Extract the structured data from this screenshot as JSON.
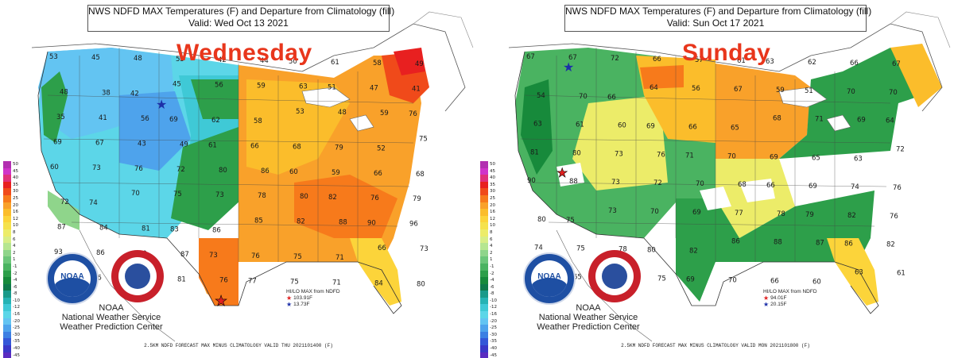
{
  "panels": [
    {
      "title_line1": "NWS NDFD MAX Temperatures (F) and Departure from Climatology (fill)",
      "title_line2": "Valid: Wed Oct 13 2021",
      "day_label": "Wednesday",
      "hilo_title": "HI/LO MAX from NDFD",
      "hi_value": "103.91F",
      "lo_value": "13.73F",
      "footer": "2.5KM NDFD FORECAST MAX MINUS CLIMATOLOGY VALID THU 2021101400 (F)",
      "temps": [
        {
          "t": "53"
        },
        {
          "t": "45"
        },
        {
          "t": "48"
        },
        {
          "t": "55"
        },
        {
          "t": "42"
        },
        {
          "t": "44"
        },
        {
          "t": "50"
        },
        {
          "t": "61"
        },
        {
          "t": "58"
        },
        {
          "t": "49"
        },
        {
          "t": "48"
        },
        {
          "t": "38"
        },
        {
          "t": "42"
        },
        {
          "t": "45"
        },
        {
          "t": "56"
        },
        {
          "t": "59"
        },
        {
          "t": "63"
        },
        {
          "t": "51"
        },
        {
          "t": "47"
        },
        {
          "t": "41"
        },
        {
          "t": "35"
        },
        {
          "t": "41"
        },
        {
          "t": "56"
        },
        {
          "t": "69"
        },
        {
          "t": "62"
        },
        {
          "t": "58"
        },
        {
          "t": "53"
        },
        {
          "t": "48"
        },
        {
          "t": "59"
        },
        {
          "t": "76"
        },
        {
          "t": "69"
        },
        {
          "t": "67"
        },
        {
          "t": "43"
        },
        {
          "t": "49"
        },
        {
          "t": "61"
        },
        {
          "t": "66"
        },
        {
          "t": "68"
        },
        {
          "t": "79"
        },
        {
          "t": "52"
        },
        {
          "t": "75"
        },
        {
          "t": "60"
        },
        {
          "t": "73"
        },
        {
          "t": "76"
        },
        {
          "t": "72"
        },
        {
          "t": "80"
        },
        {
          "t": "86"
        },
        {
          "t": "60"
        },
        {
          "t": "59"
        },
        {
          "t": "66"
        },
        {
          "t": "68"
        },
        {
          "t": "72"
        },
        {
          "t": "74"
        },
        {
          "t": "70"
        },
        {
          "t": "75"
        },
        {
          "t": "73"
        },
        {
          "t": "78"
        },
        {
          "t": "80"
        },
        {
          "t": "82"
        },
        {
          "t": "76"
        },
        {
          "t": "79"
        },
        {
          "t": "87"
        },
        {
          "t": "84"
        },
        {
          "t": "81"
        },
        {
          "t": "83"
        },
        {
          "t": "86"
        },
        {
          "t": "85"
        },
        {
          "t": "82"
        },
        {
          "t": "88"
        },
        {
          "t": "90"
        },
        {
          "t": "96"
        },
        {
          "t": "93"
        },
        {
          "t": "86"
        },
        {
          "t": "90"
        },
        {
          "t": "87"
        },
        {
          "t": "73"
        },
        {
          "t": "76"
        },
        {
          "t": "75"
        },
        {
          "t": "71"
        },
        {
          "t": "66"
        },
        {
          "t": "73"
        },
        {
          "t": "74"
        },
        {
          "t": "76"
        },
        {
          "t": "80"
        },
        {
          "t": "81"
        },
        {
          "t": "76"
        },
        {
          "t": "77"
        },
        {
          "t": "75"
        },
        {
          "t": "71"
        },
        {
          "t": "84"
        },
        {
          "t": "80"
        }
      ]
    },
    {
      "title_line1": "NWS NDFD MAX Temperatures (F) and Departure from Climatology (fill)",
      "title_line2": "Valid: Sun Oct 17 2021",
      "day_label": "Sunday",
      "hilo_title": "HI/LO MAX from NDFD",
      "hi_value": "94.01F",
      "lo_value": "20.15F",
      "footer": "2.5KM NDFD FORECAST MAX MINUS CLIMATOLOGY VALID MON 2021101800 (F)",
      "temps": [
        {
          "t": "67"
        },
        {
          "t": "67"
        },
        {
          "t": "72"
        },
        {
          "t": "66"
        },
        {
          "t": "57"
        },
        {
          "t": "61"
        },
        {
          "t": "63"
        },
        {
          "t": "62"
        },
        {
          "t": "66"
        },
        {
          "t": "67"
        },
        {
          "t": "54"
        },
        {
          "t": "70"
        },
        {
          "t": "66"
        },
        {
          "t": "64"
        },
        {
          "t": "56"
        },
        {
          "t": "67"
        },
        {
          "t": "59"
        },
        {
          "t": "51"
        },
        {
          "t": "70"
        },
        {
          "t": "70"
        },
        {
          "t": "63"
        },
        {
          "t": "61"
        },
        {
          "t": "60"
        },
        {
          "t": "69"
        },
        {
          "t": "66"
        },
        {
          "t": "65"
        },
        {
          "t": "68"
        },
        {
          "t": "71"
        },
        {
          "t": "69"
        },
        {
          "t": "64"
        },
        {
          "t": "81"
        },
        {
          "t": "80"
        },
        {
          "t": "73"
        },
        {
          "t": "76"
        },
        {
          "t": "71"
        },
        {
          "t": "70"
        },
        {
          "t": "69"
        },
        {
          "t": "65"
        },
        {
          "t": "63"
        },
        {
          "t": "72"
        },
        {
          "t": "90"
        },
        {
          "t": "88"
        },
        {
          "t": "73"
        },
        {
          "t": "72"
        },
        {
          "t": "70"
        },
        {
          "t": "68"
        },
        {
          "t": "66"
        },
        {
          "t": "69"
        },
        {
          "t": "74"
        },
        {
          "t": "76"
        },
        {
          "t": "80"
        },
        {
          "t": "75"
        },
        {
          "t": "73"
        },
        {
          "t": "70"
        },
        {
          "t": "69"
        },
        {
          "t": "77"
        },
        {
          "t": "78"
        },
        {
          "t": "79"
        },
        {
          "t": "82"
        },
        {
          "t": "76"
        },
        {
          "t": "74"
        },
        {
          "t": "75"
        },
        {
          "t": "78"
        },
        {
          "t": "80"
        },
        {
          "t": "82"
        },
        {
          "t": "86"
        },
        {
          "t": "88"
        },
        {
          "t": "87"
        },
        {
          "t": "86"
        },
        {
          "t": "82"
        },
        {
          "t": "68"
        },
        {
          "t": "65"
        },
        {
          "t": "73"
        },
        {
          "t": "75"
        },
        {
          "t": "69"
        },
        {
          "t": "70"
        },
        {
          "t": "66"
        },
        {
          "t": "60"
        },
        {
          "t": "63"
        },
        {
          "t": "61"
        }
      ]
    }
  ],
  "colorbar": {
    "labels": [
      "50",
      "45",
      "40",
      "35",
      "30",
      "25",
      "20",
      "16",
      "12",
      "10",
      "8",
      "6",
      "4",
      "2",
      "1",
      "-1",
      "-2",
      "-4",
      "-6",
      "-8",
      "-10",
      "-12",
      "-16",
      "-20",
      "-25",
      "-30",
      "-35",
      "-40",
      "-45",
      "-50"
    ],
    "colors": [
      "#b22fb0",
      "#d033c9",
      "#e0307a",
      "#e82020",
      "#f04a1a",
      "#f77a1b",
      "#f9a12a",
      "#fbbd2b",
      "#fcd43a",
      "#f5e24d",
      "#ecec69",
      "#d8ee86",
      "#b6e690",
      "#8fd58b",
      "#6cc67a",
      "#4ab361",
      "#2d9f4a",
      "#178a3b",
      "#0f7a4a",
      "#1a9a8a",
      "#26b3b4",
      "#3fc9d6",
      "#5cd6e8",
      "#63c4f2",
      "#4ea3ec",
      "#3c7fe3",
      "#3457d8",
      "#3a38c8",
      "#5a2cc0",
      "#c050d8"
    ]
  },
  "org": {
    "line1": "NOAA",
    "line2": "National Weather Service",
    "line3": "Weather Prediction Center"
  }
}
